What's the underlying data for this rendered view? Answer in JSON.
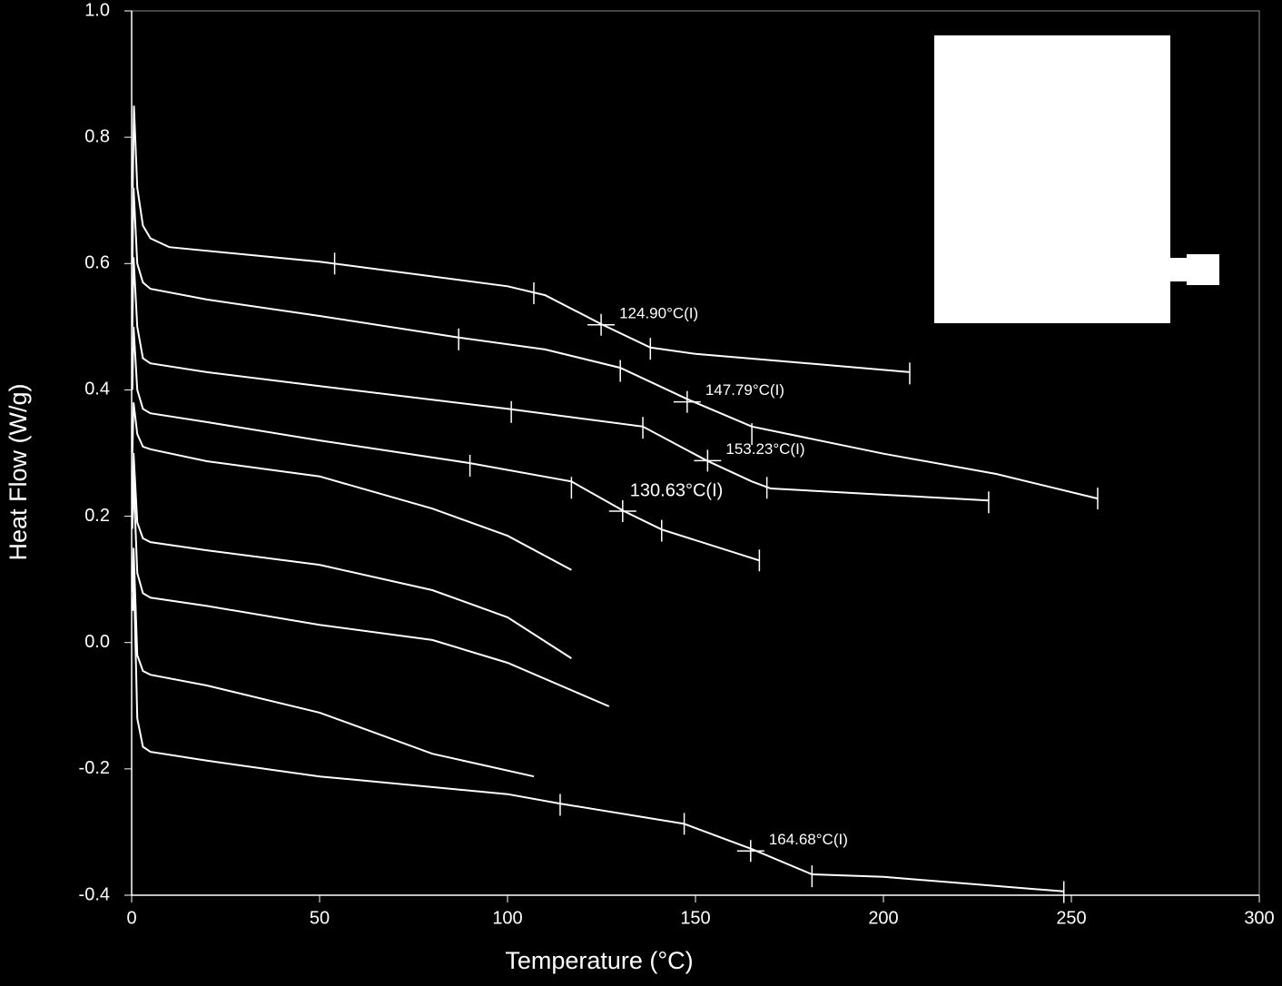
{
  "chart_data": {
    "type": "line",
    "x_label": "Temperature (°C)",
    "y_label": "Heat Flow (W/g)",
    "xlim": [
      0,
      300
    ],
    "xticks": [
      0,
      50,
      100,
      150,
      200,
      250,
      300
    ],
    "ylim": [
      -0.4,
      1.0
    ],
    "yticks": [
      -0.4,
      -0.2,
      {
        "value": 0,
        "label": "0.0"
      },
      0.2,
      0.4,
      0.6,
      0.8,
      {
        "value": 1,
        "label": "1.0"
      }
    ],
    "series": [
      {
        "color": "#ffffff",
        "x": [
          0.3,
          0.6,
          1.5,
          3,
          5,
          10,
          50,
          100,
          110,
          125,
          138,
          150,
          170,
          207
        ],
        "values": [
          0.72,
          0.85,
          0.72,
          0.66,
          0.64,
          0.626,
          0.603,
          0.564,
          0.55,
          0.504,
          0.467,
          0.457,
          0.447,
          0.428
        ]
      },
      {
        "color": "#ffffff",
        "x": [
          0.2,
          0.5,
          1.5,
          3,
          5,
          20,
          50,
          87,
          110,
          130,
          148,
          165,
          200,
          230,
          257
        ],
        "values": [
          0.6,
          0.72,
          0.6,
          0.57,
          0.56,
          0.543,
          0.517,
          0.483,
          0.464,
          0.435,
          0.385,
          0.342,
          0.299,
          0.267,
          0.228
        ]
      },
      {
        "color": "#ffffff",
        "x": [
          0.2,
          0.5,
          1.5,
          3,
          5,
          20,
          50,
          100,
          136,
          153,
          165,
          170,
          200,
          228
        ],
        "values": [
          0.5,
          0.61,
          0.5,
          0.45,
          0.442,
          0.428,
          0.406,
          0.37,
          0.342,
          0.288,
          0.255,
          0.244,
          0.234,
          0.225
        ]
      },
      {
        "color": "#ffffff",
        "x": [
          0.2,
          0.5,
          1.5,
          3,
          5,
          20,
          50,
          90,
          117,
          131,
          141,
          167
        ],
        "values": [
          0.4,
          0.5,
          0.4,
          0.37,
          0.363,
          0.349,
          0.32,
          0.284,
          0.255,
          0.208,
          0.179,
          0.13
        ]
      },
      {
        "color": "#ffffff",
        "x": [
          0.2,
          0.5,
          1.5,
          3,
          5,
          20,
          50,
          80,
          100,
          117
        ],
        "values": [
          0.3,
          0.38,
          0.33,
          0.31,
          0.306,
          0.287,
          0.263,
          0.212,
          0.169,
          0.115
        ]
      },
      {
        "color": "#ffffff",
        "x": [
          0.2,
          0.5,
          1.5,
          3,
          5,
          20,
          50,
          80,
          100,
          117
        ],
        "values": [
          0.22,
          0.3,
          0.19,
          0.165,
          0.159,
          0.146,
          0.123,
          0.083,
          0.04,
          -0.025
        ]
      },
      {
        "color": "#ffffff",
        "x": [
          0.2,
          0.5,
          1.5,
          3,
          5,
          20,
          50,
          80,
          100,
          127
        ],
        "values": [
          0.18,
          0.26,
          0.11,
          0.078,
          0.071,
          0.058,
          0.028,
          0.004,
          -0.032,
          -0.101
        ]
      },
      {
        "color": "#ffffff",
        "x": [
          0.2,
          0.5,
          1.5,
          3,
          5,
          20,
          50,
          80,
          107
        ],
        "values": [
          0.08,
          0.15,
          -0.02,
          -0.045,
          -0.051,
          -0.068,
          -0.111,
          -0.176,
          -0.212
        ]
      },
      {
        "color": "#ffffff",
        "x": [
          0.3,
          0.6,
          1.5,
          3,
          5,
          20,
          50,
          100,
          114,
          147,
          165,
          181,
          200,
          248
        ],
        "values": [
          0.05,
          0.1,
          -0.12,
          -0.165,
          -0.173,
          -0.187,
          -0.212,
          -0.24,
          -0.255,
          -0.287,
          -0.327,
          -0.367,
          -0.371,
          -0.394
        ]
      }
    ],
    "markers": [
      {
        "x": 54,
        "y": 0.6
      },
      {
        "x": 107,
        "y": 0.553
      },
      {
        "x": 138,
        "y": 0.465
      },
      {
        "x": 207,
        "y": 0.426
      },
      {
        "x": 87,
        "y": 0.48
      },
      {
        "x": 130,
        "y": 0.43
      },
      {
        "x": 165,
        "y": 0.33
      },
      {
        "x": 257,
        "y": 0.228
      },
      {
        "x": 101,
        "y": 0.365
      },
      {
        "x": 136,
        "y": 0.34
      },
      {
        "x": 169,
        "y": 0.245
      },
      {
        "x": 228,
        "y": 0.222
      },
      {
        "x": 90,
        "y": 0.28
      },
      {
        "x": 117,
        "y": 0.245
      },
      {
        "x": 141,
        "y": 0.177
      },
      {
        "x": 167,
        "y": 0.13
      },
      {
        "x": 114,
        "y": -0.257
      },
      {
        "x": 147,
        "y": -0.287
      },
      {
        "x": 181,
        "y": -0.37
      },
      {
        "x": 248,
        "y": -0.395
      }
    ],
    "annotations": [
      {
        "x": 124.9,
        "y": 0.503,
        "text": "124.90°C(I)"
      },
      {
        "x": 147.79,
        "y": 0.381,
        "text": "147.79°C(I)"
      },
      {
        "x": 153.23,
        "y": 0.288,
        "text": "153.23°C(I)"
      },
      {
        "x": 130.63,
        "y": 0.208,
        "text": "130.63°C(I)",
        "size": "large"
      },
      {
        "x": 164.68,
        "y": -0.33,
        "text": "164.68°C(I)"
      }
    ]
  }
}
